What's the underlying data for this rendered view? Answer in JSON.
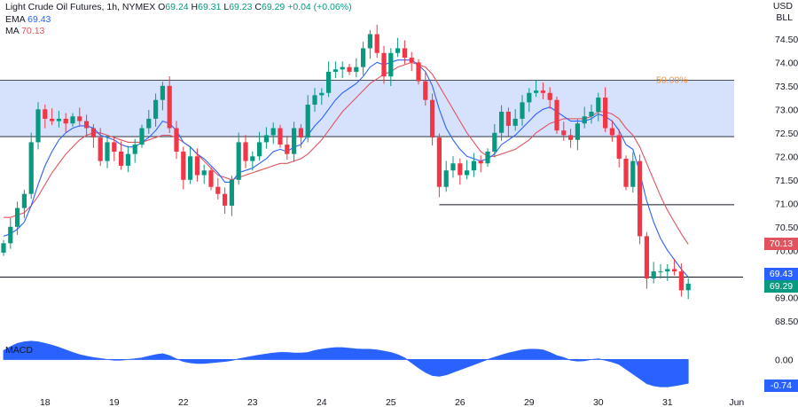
{
  "header": {
    "symbol": "Light Crude Oil Futures, 1h, NYMEX",
    "open_label": "O",
    "open": "69.24",
    "high_label": "H",
    "high": "69.31",
    "low_label": "L",
    "low": "69.23",
    "close_label": "C",
    "close": "69.29",
    "change": "+0.04 (+0.06%)",
    "ema_label": "EMA",
    "ema_value": "69.43",
    "ma_label": "MA",
    "ma_value": "70.13",
    "unit_currency": "USD",
    "unit_volume": "BLL"
  },
  "macd": {
    "label": "MACD",
    "zero_label": "0.00",
    "last_label": "-0.74"
  },
  "price_tags": {
    "ma": "70.13",
    "ema": "69.43",
    "last": "69.29"
  },
  "annotations": {
    "fib_label": "50.00%"
  },
  "colors": {
    "up": "#089981",
    "down": "#f23645",
    "ema": "#2962ff",
    "ma": "#e0535f",
    "zone_fill": "#cfdcfc",
    "macd_fill": "#2962ff",
    "line": "#131722",
    "fib_text": "#e8913f"
  },
  "chart_data": {
    "type": "candlestick",
    "price_axis": {
      "ylim": [
        68.25,
        74.95
      ],
      "ticks": [
        "74.50",
        "74.00",
        "73.50",
        "73.00",
        "72.50",
        "72.00",
        "71.50",
        "71.00",
        "70.50",
        "70.00",
        "69.50",
        "69.00",
        "68.50"
      ]
    },
    "x_axis": {
      "labels": [
        "18",
        "19",
        "22",
        "23",
        "24",
        "25",
        "26",
        "29",
        "30",
        "31",
        "Jun"
      ],
      "label_index": [
        6,
        16,
        26,
        36,
        46,
        56,
        66,
        76,
        86,
        96,
        106
      ]
    },
    "zone": {
      "price_top": 73.62,
      "price_bottom": 72.42,
      "label": "50.00%"
    },
    "levels": [
      {
        "price": 70.97,
        "start_index": 63
      },
      {
        "price": 69.43,
        "start_index": 0
      }
    ],
    "series": [
      {
        "name": "EMA",
        "last": 69.43
      },
      {
        "name": "MA",
        "last": 70.13
      }
    ],
    "closes": [
      70.15,
      70.5,
      70.9,
      71.2,
      72.3,
      73.0,
      72.8,
      72.75,
      72.8,
      72.7,
      72.85,
      72.75,
      72.6,
      72.4,
      71.9,
      72.3,
      72.1,
      71.8,
      72.05,
      72.25,
      72.6,
      72.8,
      73.2,
      73.5,
      72.6,
      72.1,
      71.5,
      72.0,
      71.6,
      71.7,
      71.35,
      71.2,
      70.95,
      71.5,
      72.3,
      71.9,
      72.0,
      72.3,
      72.45,
      72.6,
      72.25,
      72.05,
      72.6,
      72.4,
      73.1,
      73.3,
      73.35,
      73.8,
      73.85,
      73.9,
      73.8,
      73.9,
      74.3,
      74.6,
      74.2,
      73.7,
      74.2,
      74.3,
      74.1,
      74.0,
      73.6,
      73.2,
      72.4,
      71.35,
      71.7,
      71.85,
      71.6,
      71.7,
      71.9,
      71.85,
      72.1,
      72.5,
      72.95,
      72.65,
      72.8,
      73.15,
      73.35,
      73.4,
      73.35,
      73.2,
      72.55,
      72.45,
      72.35,
      72.7,
      72.85,
      72.95,
      73.25,
      72.6,
      72.45,
      71.95,
      71.35,
      71.9,
      70.3,
      69.4,
      69.55,
      69.55,
      69.6,
      69.55,
      69.15,
      69.29
    ],
    "ema_values": [
      70.3,
      70.35,
      70.45,
      70.6,
      70.95,
      71.4,
      71.8,
      72.1,
      72.35,
      72.5,
      72.6,
      72.65,
      72.65,
      72.6,
      72.45,
      72.4,
      72.35,
      72.25,
      72.2,
      72.2,
      72.3,
      72.4,
      72.55,
      72.75,
      72.7,
      72.55,
      72.3,
      72.2,
      72.05,
      71.95,
      71.8,
      71.65,
      71.45,
      71.45,
      71.65,
      71.7,
      71.75,
      71.85,
      71.95,
      72.1,
      72.15,
      72.1,
      72.2,
      72.25,
      72.45,
      72.65,
      72.8,
      73.0,
      73.2,
      73.35,
      73.45,
      73.55,
      73.7,
      73.9,
      74.0,
      73.95,
      74.0,
      74.05,
      74.05,
      74.05,
      73.95,
      73.8,
      73.5,
      73.0,
      72.6,
      72.35,
      72.15,
      72.0,
      71.95,
      71.9,
      71.95,
      72.05,
      72.25,
      72.35,
      72.45,
      72.6,
      72.75,
      72.9,
      73.0,
      73.05,
      72.95,
      72.85,
      72.75,
      72.75,
      72.75,
      72.8,
      72.9,
      72.85,
      72.75,
      72.55,
      72.25,
      72.15,
      71.65,
      71.05,
      70.6,
      70.25,
      70.0,
      69.8,
      69.6,
      69.43
    ],
    "ma_values": [
      70.7,
      70.7,
      70.75,
      70.8,
      70.95,
      71.15,
      71.4,
      71.65,
      71.85,
      72.05,
      72.2,
      72.35,
      72.45,
      72.5,
      72.5,
      72.45,
      72.4,
      72.35,
      72.3,
      72.3,
      72.3,
      72.35,
      72.4,
      72.45,
      72.45,
      72.4,
      72.3,
      72.2,
      72.05,
      71.9,
      71.75,
      71.6,
      71.55,
      71.5,
      71.55,
      71.6,
      71.65,
      71.7,
      71.75,
      71.8,
      71.85,
      71.85,
      71.9,
      71.95,
      72.05,
      72.2,
      72.35,
      72.55,
      72.75,
      72.95,
      73.1,
      73.25,
      73.4,
      73.55,
      73.65,
      73.75,
      73.8,
      73.9,
      73.95,
      74.0,
      73.95,
      73.9,
      73.75,
      73.5,
      73.25,
      73.0,
      72.75,
      72.5,
      72.3,
      72.1,
      72.0,
      72.0,
      72.05,
      72.1,
      72.15,
      72.25,
      72.35,
      72.5,
      72.6,
      72.7,
      72.75,
      72.8,
      72.8,
      72.8,
      72.8,
      72.85,
      72.95,
      72.95,
      72.9,
      72.8,
      72.6,
      72.45,
      72.2,
      71.85,
      71.5,
      71.15,
      70.85,
      70.6,
      70.35,
      70.13
    ],
    "macd_values": [
      0.28,
      0.4,
      0.5,
      0.55,
      0.57,
      0.55,
      0.5,
      0.45,
      0.38,
      0.3,
      0.22,
      0.15,
      0.1,
      0.06,
      0.03,
      0.0,
      -0.02,
      -0.02,
      0.0,
      0.02,
      0.05,
      0.1,
      0.15,
      0.18,
      0.12,
      0.02,
      -0.06,
      -0.1,
      -0.12,
      -0.12,
      -0.1,
      -0.08,
      -0.06,
      -0.03,
      0.02,
      0.06,
      0.1,
      0.14,
      0.17,
      0.2,
      0.22,
      0.22,
      0.2,
      0.2,
      0.22,
      0.28,
      0.32,
      0.35,
      0.37,
      0.37,
      0.35,
      0.33,
      0.32,
      0.32,
      0.3,
      0.26,
      0.22,
      0.15,
      0.05,
      -0.1,
      -0.26,
      -0.4,
      -0.5,
      -0.52,
      -0.48,
      -0.4,
      -0.32,
      -0.24,
      -0.16,
      -0.08,
      0.0,
      0.07,
      0.14,
      0.2,
      0.25,
      0.3,
      0.32,
      0.32,
      0.3,
      0.22,
      0.12,
      0.06,
      -0.02,
      -0.05,
      -0.04,
      0.0,
      0.02,
      -0.02,
      -0.08,
      -0.15,
      -0.3,
      -0.45,
      -0.6,
      -0.75,
      -0.82,
      -0.85,
      -0.85,
      -0.82,
      -0.78,
      -0.74
    ],
    "macd_ylim": [
      -0.9,
      0.62
    ]
  }
}
